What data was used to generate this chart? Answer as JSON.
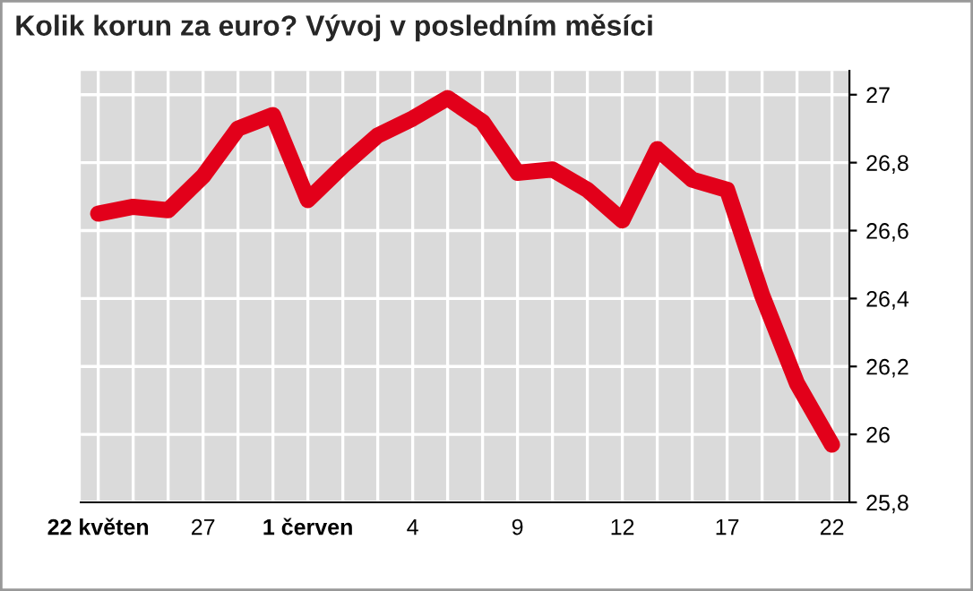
{
  "chart_data": {
    "type": "line",
    "title": "Kolik korun za euro? Vývoj v posledním měsíci",
    "categories": [
      "22 květen",
      null,
      null,
      "27",
      null,
      null,
      "1 červen",
      null,
      null,
      "4",
      null,
      null,
      "9",
      null,
      null,
      "12",
      null,
      null,
      "17",
      null,
      null,
      "22"
    ],
    "series": [
      {
        "color": "#e2001a",
        "values": [
          26.65,
          26.67,
          26.66,
          26.76,
          26.9,
          26.94,
          26.69,
          26.79,
          26.88,
          26.93,
          26.99,
          26.92,
          26.77,
          26.78,
          26.72,
          26.63,
          26.84,
          26.75,
          26.72,
          26.41,
          26.15,
          25.97
        ]
      }
    ],
    "ylim": [
      25.8,
      27.07
    ],
    "yticks": [
      {
        "value": 25.8,
        "label": "25,8"
      },
      {
        "value": 26,
        "label": "26"
      },
      {
        "value": 26.2,
        "label": "26,2"
      },
      {
        "value": 26.4,
        "label": "26,4"
      },
      {
        "value": 26.6,
        "label": "26,6"
      },
      {
        "value": 26.8,
        "label": "26,8"
      },
      {
        "value": 27,
        "label": "27"
      }
    ],
    "grid": true,
    "marker": "none",
    "line_style": "solid"
  }
}
